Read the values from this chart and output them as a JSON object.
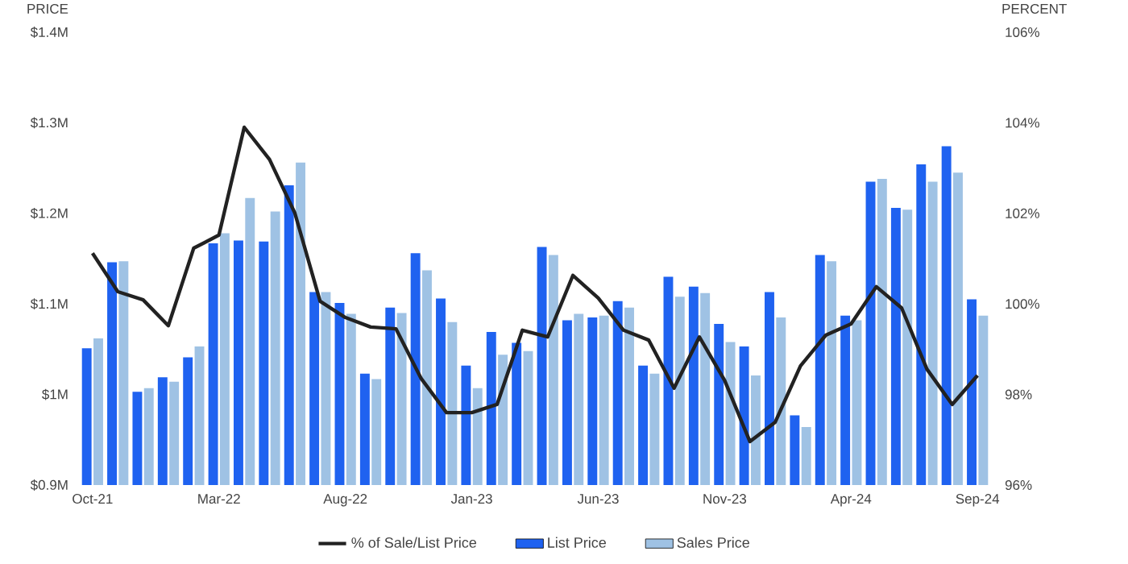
{
  "chart_data": {
    "type": "bar",
    "ylabel": "PRICE",
    "y2label": "PERCENT",
    "categories": [
      "Oct-21",
      null,
      null,
      null,
      null,
      "Mar-22",
      null,
      null,
      null,
      null,
      "Aug-22",
      null,
      null,
      null,
      null,
      "Jan-23",
      null,
      null,
      null,
      null,
      "Jun-23",
      null,
      null,
      null,
      null,
      "Nov-23",
      null,
      null,
      null,
      null,
      "Apr-24",
      null,
      null,
      null,
      null,
      "Sep-24"
    ],
    "series": [
      {
        "name": "% of Sale/List Price",
        "type": "line",
        "axis": "y2",
        "color": "#222222",
        "values": [
          101.12,
          100.27,
          100.09,
          99.52,
          101.23,
          101.52,
          103.9,
          103.19,
          102.01,
          100.06,
          99.7,
          99.49,
          99.45,
          98.35,
          97.6,
          97.6,
          97.78,
          99.42,
          99.27,
          100.63,
          100.13,
          99.42,
          99.2,
          98.14,
          99.27,
          98.31,
          96.96,
          97.39,
          98.63,
          99.31,
          99.56,
          100.38,
          99.91,
          98.56,
          97.78,
          98.42
        ]
      },
      {
        "name": "List Price",
        "color": "#1f62f0",
        "values": [
          1.051,
          1.146,
          1.003,
          1.019,
          1.041,
          1.167,
          1.17,
          1.169,
          1.231,
          1.113,
          1.101,
          1.023,
          1.096,
          1.156,
          1.106,
          1.032,
          1.069,
          1.057,
          1.163,
          1.082,
          1.085,
          1.103,
          1.032,
          1.13,
          1.119,
          1.078,
          1.053,
          1.113,
          0.977,
          1.154,
          1.087,
          1.235,
          1.206,
          1.254,
          1.274,
          1.105
        ]
      },
      {
        "name": "Sales Price",
        "color": "#9fc2e4",
        "values": [
          1.062,
          1.147,
          1.007,
          1.014,
          1.053,
          1.178,
          1.217,
          1.202,
          1.256,
          1.113,
          1.089,
          1.017,
          1.09,
          1.137,
          1.08,
          1.007,
          1.044,
          1.048,
          1.154,
          1.089,
          1.087,
          1.096,
          1.023,
          1.108,
          1.112,
          1.058,
          1.021,
          1.085,
          0.964,
          1.147,
          1.082,
          1.238,
          1.204,
          1.235,
          1.245,
          1.087
        ]
      }
    ],
    "ylim": [
      0.9,
      1.4
    ],
    "yticks": [
      {
        "value": 0.9,
        "label": "$0.9M"
      },
      {
        "value": 1.0,
        "label": "$1M"
      },
      {
        "value": 1.1,
        "label": "$1.1M"
      },
      {
        "value": 1.2,
        "label": "$1.2M"
      },
      {
        "value": 1.3,
        "label": "$1.3M"
      },
      {
        "value": 1.4,
        "label": "$1.4M"
      }
    ],
    "y2lim": [
      96,
      106
    ],
    "y2ticks": [
      {
        "value": 96,
        "label": "96%"
      },
      {
        "value": 98,
        "label": "98%"
      },
      {
        "value": 100,
        "label": "100%"
      },
      {
        "value": 102,
        "label": "102%"
      },
      {
        "value": 104,
        "label": "104%"
      },
      {
        "value": 106,
        "label": "106%"
      }
    ],
    "legend": "bottom"
  }
}
